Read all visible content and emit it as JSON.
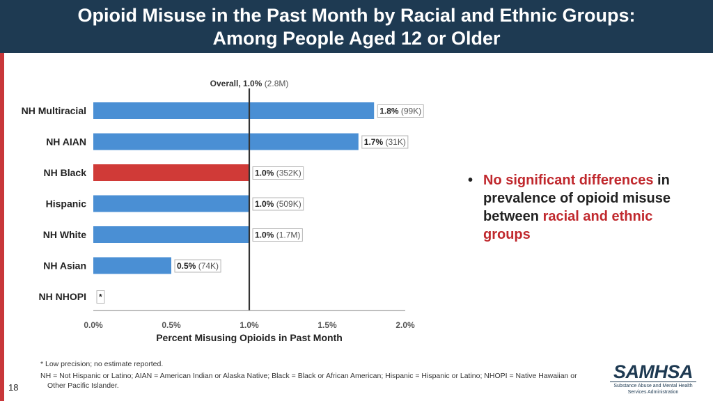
{
  "slide": {
    "title_line1": "Opioid Misuse in the Past Month by Racial and Ethnic Groups:",
    "title_line2": "Among People Aged 12 or Older",
    "page_number": "18"
  },
  "colors": {
    "header_bg": "#1e3a52",
    "bar_default": "#4a8fd4",
    "bar_highlight": "#d03a37",
    "accent_text": "#c0282d"
  },
  "chart_data": {
    "type": "bar",
    "orientation": "horizontal",
    "categories": [
      "NH Multiracial",
      "NH AIAN",
      "NH Black",
      "Hispanic",
      "NH White",
      "NH Asian",
      "NH NHOPI"
    ],
    "values": [
      1.8,
      1.7,
      1.0,
      1.0,
      1.0,
      0.5,
      null
    ],
    "data_labels": [
      "1.8%",
      "1.7%",
      "1.0%",
      "1.0%",
      "1.0%",
      "0.5%",
      "*"
    ],
    "counts": [
      "(99K)",
      "(31K)",
      "(352K)",
      "(509K)",
      "(1.7M)",
      "(74K)",
      ""
    ],
    "highlight_index": 2,
    "reference_line": {
      "value": 1.0,
      "label": "Overall, 1.0%",
      "count": "(2.8M)"
    },
    "xlabel": "Percent Misusing Opioids in Past Month",
    "xlim": [
      0,
      2.0
    ],
    "xticks": [
      "0.0%",
      "0.5%",
      "1.0%",
      "1.5%",
      "2.0%"
    ],
    "grid": false
  },
  "bullet": {
    "part1": "No significant differences",
    "part2": " in prevalence of opioid misuse between ",
    "part3": "racial and ethnic groups"
  },
  "footnotes": {
    "note1": "* Low precision; no estimate reported.",
    "note2_line1": "NH = Not Hispanic or Latino; AIAN = American Indian or Alaska Native; Black = Black or African American; Hispanic = Hispanic or Latino; NHOPI = Native Hawaiian or",
    "note2_line2": "Other Pacific Islander."
  },
  "logo": {
    "word": "SAMHSA",
    "sub1": "Substance Abuse and Mental Health",
    "sub2": "Services Administration"
  }
}
